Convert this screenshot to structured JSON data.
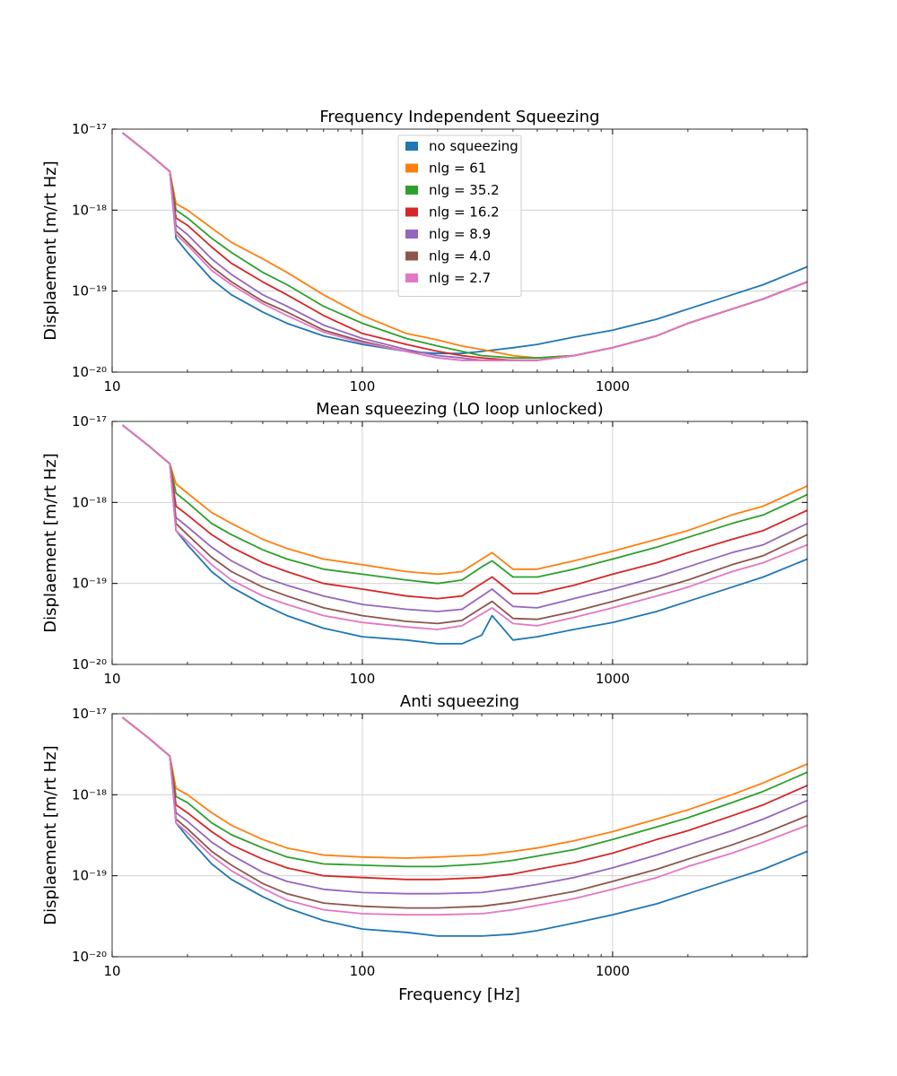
{
  "figure": {
    "xlabel": "Frequency [Hz]"
  },
  "colors": {
    "no squeezing": "#1f77b4",
    "nlg = 61": "#ff7f0e",
    "nlg = 35.2": "#2ca02c",
    "nlg = 16.2": "#d62728",
    "nlg = 8.9": "#9467bd",
    "nlg = 4.0": "#8c564b",
    "nlg = 2.7": "#e377c2"
  },
  "chart_data": [
    {
      "type": "line",
      "title": "Frequency Independent Squeezing",
      "xlabel": "",
      "ylabel": "Displaement [m/rt Hz]",
      "xscale": "log",
      "yscale": "log",
      "xlim": [
        10,
        6000
      ],
      "ylim": [
        1e-20,
        1e-17
      ],
      "x_tick_labels": [
        "10",
        "100",
        "1000"
      ],
      "y_tick_labels": [
        "10⁻²⁰",
        "10⁻¹⁹",
        "10⁻¹⁸",
        "10⁻¹⁷"
      ],
      "grid": true,
      "legend": "upper center",
      "x": [
        11,
        14,
        17,
        18,
        20,
        25,
        30,
        40,
        50,
        70,
        100,
        150,
        200,
        250,
        300,
        400,
        500,
        700,
        1000,
        1500,
        2000,
        3000,
        4000,
        6000
      ],
      "series": [
        {
          "name": "no squeezing",
          "values": [
            9e-18,
            5e-18,
            3e-18,
            4.5e-19,
            3e-19,
            1.4e-19,
            9e-20,
            5.5e-20,
            4e-20,
            2.8e-20,
            2.2e-20,
            1.8e-20,
            1.7e-20,
            1.7e-20,
            1.8e-20,
            2e-20,
            2.2e-20,
            2.7e-20,
            3.3e-20,
            4.5e-20,
            6e-20,
            9e-20,
            1.2e-19,
            2e-19
          ]
        },
        {
          "name": "nlg = 61",
          "values": [
            9e-18,
            5e-18,
            3e-18,
            1.2e-18,
            1e-18,
            6e-19,
            4e-19,
            2.5e-19,
            1.7e-19,
            9e-20,
            5e-20,
            3e-20,
            2.5e-20,
            2.1e-20,
            1.9e-20,
            1.6e-20,
            1.5e-20,
            1.6e-20,
            2e-20,
            2.8e-20,
            4e-20,
            6e-20,
            8e-20,
            1.3e-19
          ]
        },
        {
          "name": "nlg = 35.2",
          "values": [
            9e-18,
            5e-18,
            3e-18,
            1e-18,
            8e-19,
            4.5e-19,
            3e-19,
            1.7e-19,
            1.2e-19,
            6.5e-20,
            4e-20,
            2.6e-20,
            2.1e-20,
            1.8e-20,
            1.6e-20,
            1.5e-20,
            1.5e-20,
            1.6e-20,
            2e-20,
            2.8e-20,
            4e-20,
            6e-20,
            8e-20,
            1.3e-19
          ]
        },
        {
          "name": "nlg = 16.2",
          "values": [
            9e-18,
            5e-18,
            3e-18,
            8e-19,
            6.5e-19,
            3.5e-19,
            2.2e-19,
            1.3e-19,
            9e-20,
            5e-20,
            3e-20,
            2.2e-20,
            1.8e-20,
            1.6e-20,
            1.5e-20,
            1.4e-20,
            1.4e-20,
            1.6e-20,
            2e-20,
            2.8e-20,
            4e-20,
            6e-20,
            8e-20,
            1.3e-19
          ]
        },
        {
          "name": "nlg = 8.9",
          "values": [
            9e-18,
            5e-18,
            3e-18,
            6.5e-19,
            5e-19,
            2.5e-19,
            1.6e-19,
            9e-20,
            6.5e-20,
            3.8e-20,
            2.6e-20,
            1.9e-20,
            1.6e-20,
            1.5e-20,
            1.4e-20,
            1.4e-20,
            1.4e-20,
            1.6e-20,
            2e-20,
            2.8e-20,
            4e-20,
            6e-20,
            8e-20,
            1.3e-19
          ]
        },
        {
          "name": "nlg = 4.0",
          "values": [
            9e-18,
            5e-18,
            3e-18,
            5.5e-19,
            4e-19,
            2e-19,
            1.3e-19,
            7.5e-20,
            5.5e-20,
            3.3e-20,
            2.4e-20,
            1.8e-20,
            1.5e-20,
            1.4e-20,
            1.4e-20,
            1.4e-20,
            1.4e-20,
            1.6e-20,
            2e-20,
            2.8e-20,
            4e-20,
            6e-20,
            8e-20,
            1.3e-19
          ]
        },
        {
          "name": "nlg = 2.7",
          "values": [
            9e-18,
            5e-18,
            3e-18,
            5e-19,
            3.7e-19,
            1.8e-19,
            1.2e-19,
            7e-20,
            5e-20,
            3.1e-20,
            2.3e-20,
            1.8e-20,
            1.5e-20,
            1.4e-20,
            1.4e-20,
            1.4e-20,
            1.4e-20,
            1.6e-20,
            2e-20,
            2.8e-20,
            4e-20,
            6e-20,
            8e-20,
            1.3e-19
          ]
        }
      ]
    },
    {
      "type": "line",
      "title": "Mean squeezing (LO loop unlocked)",
      "xlabel": "",
      "ylabel": "Displaement [m/rt Hz]",
      "xscale": "log",
      "yscale": "log",
      "xlim": [
        10,
        6000
      ],
      "ylim": [
        1e-20,
        1e-17
      ],
      "x_tick_labels": [
        "10",
        "100",
        "1000"
      ],
      "y_tick_labels": [
        "10⁻²⁰",
        "10⁻¹⁹",
        "10⁻¹⁸",
        "10⁻¹⁷"
      ],
      "grid": true,
      "x": [
        11,
        14,
        17,
        18,
        20,
        25,
        30,
        40,
        50,
        70,
        100,
        150,
        200,
        250,
        300,
        330,
        400,
        500,
        700,
        1000,
        1500,
        2000,
        3000,
        4000,
        6000
      ],
      "series": [
        {
          "name": "no squeezing",
          "values": [
            9e-18,
            5e-18,
            3e-18,
            4.5e-19,
            3e-19,
            1.4e-19,
            9e-20,
            5.5e-20,
            4e-20,
            2.8e-20,
            2.2e-20,
            2e-20,
            1.8e-20,
            1.8e-20,
            2.3e-20,
            4e-20,
            2e-20,
            2.2e-20,
            2.7e-20,
            3.3e-20,
            4.5e-20,
            6e-20,
            9e-20,
            1.2e-19,
            2e-19
          ]
        },
        {
          "name": "nlg = 61",
          "values": [
            9e-18,
            5e-18,
            3e-18,
            1.7e-18,
            1.3e-18,
            7.5e-19,
            5.5e-19,
            3.5e-19,
            2.7e-19,
            2e-19,
            1.7e-19,
            1.4e-19,
            1.3e-19,
            1.4e-19,
            2e-19,
            2.4e-19,
            1.5e-19,
            1.5e-19,
            1.9e-19,
            2.5e-19,
            3.5e-19,
            4.5e-19,
            7e-19,
            9e-19,
            1.6e-18
          ]
        },
        {
          "name": "nlg = 35.2",
          "values": [
            9e-18,
            5e-18,
            3e-18,
            1.3e-18,
            1e-18,
            5.5e-19,
            4e-19,
            2.6e-19,
            2e-19,
            1.5e-19,
            1.3e-19,
            1.1e-19,
            1e-19,
            1.1e-19,
            1.6e-19,
            1.9e-19,
            1.2e-19,
            1.2e-19,
            1.5e-19,
            2e-19,
            2.8e-19,
            3.7e-19,
            5.5e-19,
            7e-19,
            1.25e-18
          ]
        },
        {
          "name": "nlg = 16.2",
          "values": [
            9e-18,
            5e-18,
            3e-18,
            9e-19,
            7e-19,
            4e-19,
            2.8e-19,
            1.8e-19,
            1.4e-19,
            1e-19,
            8.5e-20,
            7e-20,
            6.5e-20,
            7e-20,
            1e-19,
            1.2e-19,
            7.5e-20,
            7.5e-20,
            9.5e-20,
            1.3e-19,
            1.8e-19,
            2.4e-19,
            3.5e-19,
            4.5e-19,
            8e-19
          ]
        },
        {
          "name": "nlg = 8.9",
          "values": [
            9e-18,
            5e-18,
            3e-18,
            6.5e-19,
            5e-19,
            2.8e-19,
            1.9e-19,
            1.2e-19,
            9.5e-20,
            7e-20,
            5.5e-20,
            4.8e-20,
            4.5e-20,
            4.8e-20,
            7e-20,
            8.5e-20,
            5.2e-20,
            5e-20,
            6.5e-20,
            8.5e-20,
            1.2e-19,
            1.6e-19,
            2.4e-19,
            3e-19,
            5.5e-19
          ]
        },
        {
          "name": "nlg = 4.0",
          "values": [
            9e-18,
            5e-18,
            3e-18,
            5.5e-19,
            4e-19,
            2.1e-19,
            1.4e-19,
            9e-20,
            7e-20,
            5e-20,
            4e-20,
            3.4e-20,
            3.2e-20,
            3.5e-20,
            5e-20,
            6e-20,
            3.7e-20,
            3.6e-20,
            4.5e-20,
            6e-20,
            8.5e-20,
            1.1e-19,
            1.7e-19,
            2.2e-19,
            4e-19
          ]
        },
        {
          "name": "nlg = 2.7",
          "values": [
            9e-18,
            5e-18,
            3e-18,
            4.5e-19,
            3.3e-19,
            1.7e-19,
            1.1e-19,
            7e-20,
            5.5e-20,
            4e-20,
            3.3e-20,
            2.9e-20,
            2.7e-20,
            3e-20,
            4.2e-20,
            5e-20,
            3.2e-20,
            3e-20,
            3.8e-20,
            5e-20,
            7e-20,
            9e-20,
            1.4e-19,
            1.8e-19,
            3e-19
          ]
        }
      ]
    },
    {
      "type": "line",
      "title": "Anti squeezing",
      "xlabel": "Frequency [Hz]",
      "ylabel": "Displaement [m/rt Hz]",
      "xscale": "log",
      "yscale": "log",
      "xlim": [
        10,
        6000
      ],
      "ylim": [
        1e-20,
        1e-17
      ],
      "x_tick_labels": [
        "10",
        "100",
        "1000"
      ],
      "y_tick_labels": [
        "10⁻²⁰",
        "10⁻¹⁹",
        "10⁻¹⁸",
        "10⁻¹⁷"
      ],
      "grid": true,
      "x": [
        11,
        14,
        17,
        18,
        20,
        25,
        30,
        40,
        50,
        70,
        100,
        150,
        200,
        300,
        400,
        500,
        700,
        1000,
        1500,
        2000,
        3000,
        4000,
        6000
      ],
      "series": [
        {
          "name": "no squeezing",
          "values": [
            9e-18,
            5e-18,
            3e-18,
            4.5e-19,
            3e-19,
            1.4e-19,
            9e-20,
            5.5e-20,
            4e-20,
            2.8e-20,
            2.2e-20,
            2e-20,
            1.8e-20,
            1.8e-20,
            1.9e-20,
            2.1e-20,
            2.6e-20,
            3.3e-20,
            4.5e-20,
            6e-20,
            9e-20,
            1.2e-19,
            2e-19
          ]
        },
        {
          "name": "nlg = 61",
          "values": [
            9e-18,
            5e-18,
            3e-18,
            1.2e-18,
            1e-18,
            6e-19,
            4.2e-19,
            2.8e-19,
            2.2e-19,
            1.8e-19,
            1.7e-19,
            1.65e-19,
            1.7e-19,
            1.8e-19,
            2e-19,
            2.2e-19,
            2.7e-19,
            3.5e-19,
            5e-19,
            6.5e-19,
            1e-18,
            1.4e-18,
            2.4e-18
          ]
        },
        {
          "name": "nlg = 35.2",
          "values": [
            9e-18,
            5e-18,
            3e-18,
            9.5e-19,
            8e-19,
            4.5e-19,
            3.2e-19,
            2.2e-19,
            1.7e-19,
            1.4e-19,
            1.35e-19,
            1.3e-19,
            1.3e-19,
            1.4e-19,
            1.55e-19,
            1.75e-19,
            2.1e-19,
            2.8e-19,
            4e-19,
            5.2e-19,
            8e-19,
            1.1e-18,
            1.9e-18
          ]
        },
        {
          "name": "nlg = 16.2",
          "values": [
            9e-18,
            5e-18,
            3e-18,
            7.5e-19,
            6e-19,
            3.5e-19,
            2.4e-19,
            1.6e-19,
            1.25e-19,
            1e-19,
            9.5e-20,
            9e-20,
            9e-20,
            9.5e-20,
            1.05e-19,
            1.2e-19,
            1.45e-19,
            1.9e-19,
            2.8e-19,
            3.6e-19,
            5.5e-19,
            7.5e-19,
            1.3e-18
          ]
        },
        {
          "name": "nlg = 8.9",
          "values": [
            9e-18,
            5e-18,
            3e-18,
            6e-19,
            4.7e-19,
            2.6e-19,
            1.8e-19,
            1.1e-19,
            8.5e-20,
            6.8e-20,
            6.2e-20,
            6e-20,
            6e-20,
            6.2e-20,
            7e-20,
            7.8e-20,
            9.5e-20,
            1.25e-19,
            1.8e-19,
            2.4e-19,
            3.6e-19,
            5e-19,
            8.5e-19
          ]
        },
        {
          "name": "nlg = 4.0",
          "values": [
            9e-18,
            5e-18,
            3e-18,
            5e-19,
            3.8e-19,
            2e-19,
            1.35e-19,
            8e-20,
            6e-20,
            4.6e-20,
            4.2e-20,
            4e-20,
            4e-20,
            4.2e-20,
            4.7e-20,
            5.3e-20,
            6.4e-20,
            8.5e-20,
            1.2e-19,
            1.6e-19,
            2.4e-19,
            3.3e-19,
            5.5e-19
          ]
        },
        {
          "name": "nlg = 2.7",
          "values": [
            9e-18,
            5e-18,
            3e-18,
            4.5e-19,
            3.4e-19,
            1.75e-19,
            1.15e-19,
            7e-20,
            5e-20,
            3.8e-20,
            3.4e-20,
            3.3e-20,
            3.3e-20,
            3.4e-20,
            3.8e-20,
            4.3e-20,
            5.2e-20,
            6.8e-20,
            9.5e-20,
            1.3e-19,
            1.9e-19,
            2.6e-19,
            4.2e-19
          ]
        }
      ]
    }
  ]
}
